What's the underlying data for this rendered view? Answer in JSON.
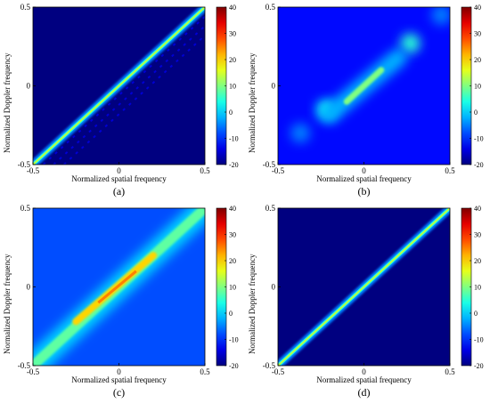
{
  "chart_data": [
    {
      "type": "heatmap",
      "panel_label": "(a)",
      "xlabel": "Normalized spatial frequency",
      "ylabel": "Normalized Doppler frequency",
      "xlim": [
        -0.5,
        0.5
      ],
      "ylim": [
        -0.5,
        0.5
      ],
      "x_ticks": [
        "-0.5",
        "0",
        "0.5"
      ],
      "y_ticks": [
        "-0.5",
        "0",
        "0.5"
      ],
      "colorbar": {
        "min": -20,
        "max": 40,
        "ticks": [
          "40",
          "30",
          "20",
          "10",
          "0",
          "-10",
          "-20"
        ]
      },
      "colormap": "jet",
      "background_level_db": -20,
      "ridge": {
        "x": [
          -0.5,
          0.5
        ],
        "y": [
          -0.5,
          0.5
        ],
        "peak_db": 15,
        "width": "narrow"
      },
      "notes_visible": "faint sidelobe diagonals parallel to the main ridge"
    },
    {
      "type": "heatmap",
      "panel_label": "(b)",
      "xlabel": "Normalized spatial frequency",
      "ylabel": "Normalized Doppler frequency",
      "xlim": [
        -0.5,
        0.5
      ],
      "ylim": [
        -0.5,
        0.5
      ],
      "x_ticks": [
        "-0.5",
        "0",
        "0.5"
      ],
      "y_ticks": [
        "-0.5",
        "0",
        "0.5"
      ],
      "colorbar": {
        "min": -20,
        "max": 40,
        "ticks": [
          "40",
          "30",
          "20",
          "10",
          "0",
          "-10",
          "-20"
        ]
      },
      "colormap": "jet",
      "background_level_db": -12,
      "ridge": {
        "x": [
          -0.1,
          0.1
        ],
        "y": [
          -0.1,
          0.1
        ],
        "peak_db": 10,
        "width": "broad"
      },
      "blobs": [
        {
          "x": 0.27,
          "y": 0.27,
          "level_db": 5
        },
        {
          "x": -0.22,
          "y": -0.15,
          "level_db": 3
        },
        {
          "x": -0.37,
          "y": -0.3,
          "level_db": -5
        },
        {
          "x": 0.45,
          "y": 0.45,
          "level_db": -5
        }
      ]
    },
    {
      "type": "heatmap",
      "panel_label": "(c)",
      "xlabel": "Normalized spatial frequency",
      "ylabel": "Normalized Doppler frequency",
      "xlim": [
        -0.5,
        0.5
      ],
      "ylim": [
        -0.5,
        0.5
      ],
      "x_ticks": [
        "-0.5",
        "0",
        "0.5"
      ],
      "y_ticks": [
        "-0.5",
        "0",
        "0.5"
      ],
      "colorbar": {
        "min": -20,
        "max": 40,
        "ticks": [
          "40",
          "30",
          "20",
          "10",
          "0",
          "-10",
          "-20"
        ]
      },
      "colormap": "jet",
      "background_level_db": -8,
      "ridge": {
        "x": [
          -0.5,
          0.5
        ],
        "y": [
          -0.5,
          0.5
        ],
        "peak_db": 25,
        "width": "wide"
      }
    },
    {
      "type": "heatmap",
      "panel_label": "(d)",
      "xlabel": "Normalized spatial frequency",
      "ylabel": "Normalized Doppler frequency",
      "xlim": [
        -0.5,
        0.5
      ],
      "ylim": [
        -0.5,
        0.5
      ],
      "x_ticks": [
        "-0.5",
        "0",
        "0.5"
      ],
      "y_ticks": [
        "-0.5",
        "0",
        "0.5"
      ],
      "colorbar": {
        "min": -20,
        "max": 40,
        "ticks": [
          "40",
          "30",
          "20",
          "10",
          "0",
          "-10",
          "-20"
        ]
      },
      "colormap": "jet",
      "background_level_db": -20,
      "ridge": {
        "x": [
          -0.5,
          0.5
        ],
        "y": [
          -0.5,
          0.5
        ],
        "peak_db": 15,
        "width": "narrow"
      }
    }
  ]
}
